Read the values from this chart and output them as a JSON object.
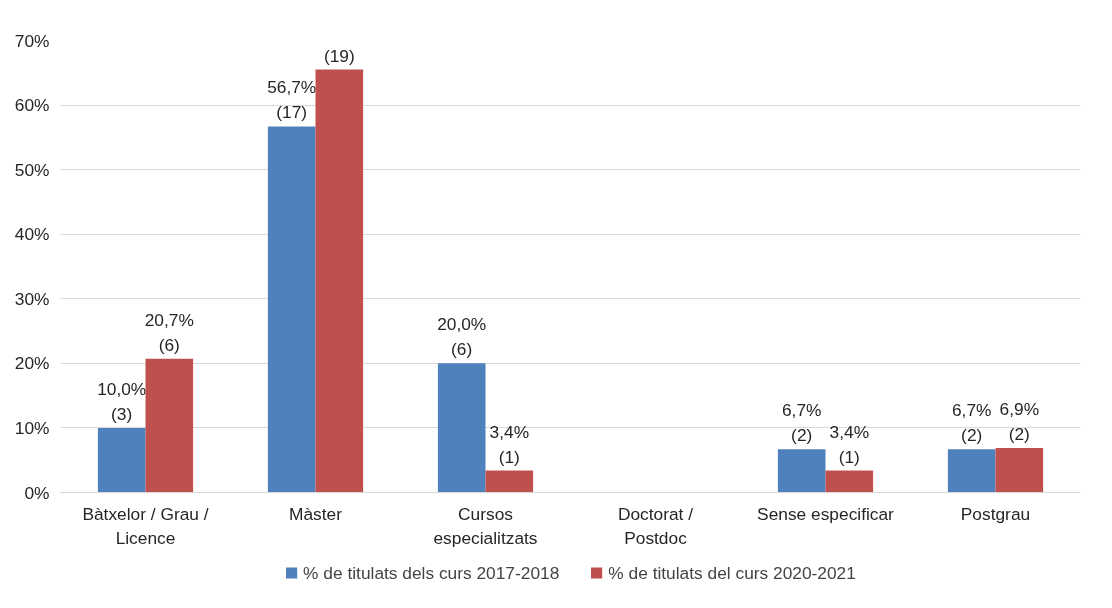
{
  "chart_data": {
    "type": "bar",
    "categories": [
      "Bàtxelor / Grau / Licence",
      "Màster",
      "Cursos especialitzats",
      "Doctorat / Postdoc",
      "Sense especificar",
      "Postgrau"
    ],
    "series": [
      {
        "name": "% de titulats dels curs 2017-2018",
        "color": "#4f81bd",
        "values": [
          10.0,
          56.7,
          20.0,
          null,
          6.7,
          6.7
        ],
        "value_labels": [
          "10,0%\n(3)",
          "56,7%\n(17)",
          "20,0%\n(6)",
          null,
          "6,7%\n(2)",
          "6,7%\n(2)"
        ]
      },
      {
        "name": "% de titulats del curs 2020-2021",
        "color": "#c0504d",
        "values": [
          20.7,
          65.5,
          3.4,
          null,
          3.4,
          6.9
        ],
        "value_labels": [
          "20,7%\n(6)",
          "65,5%\n(19)",
          "3,4%\n(1)",
          null,
          "3,4%\n(1)",
          "6,9%\n(2)"
        ]
      }
    ],
    "ylim": [
      0,
      70
    ],
    "yticks": [
      {
        "value": 0,
        "label": "0%"
      },
      {
        "value": 10,
        "label": "10%"
      },
      {
        "value": 20,
        "label": "20%"
      },
      {
        "value": 30,
        "label": "30%"
      },
      {
        "value": 40,
        "label": "40%"
      },
      {
        "value": 50,
        "label": "50%"
      },
      {
        "value": 60,
        "label": "60%"
      },
      {
        "value": 70,
        "label": "70%"
      }
    ],
    "grid": "y",
    "legend": "bottom"
  }
}
